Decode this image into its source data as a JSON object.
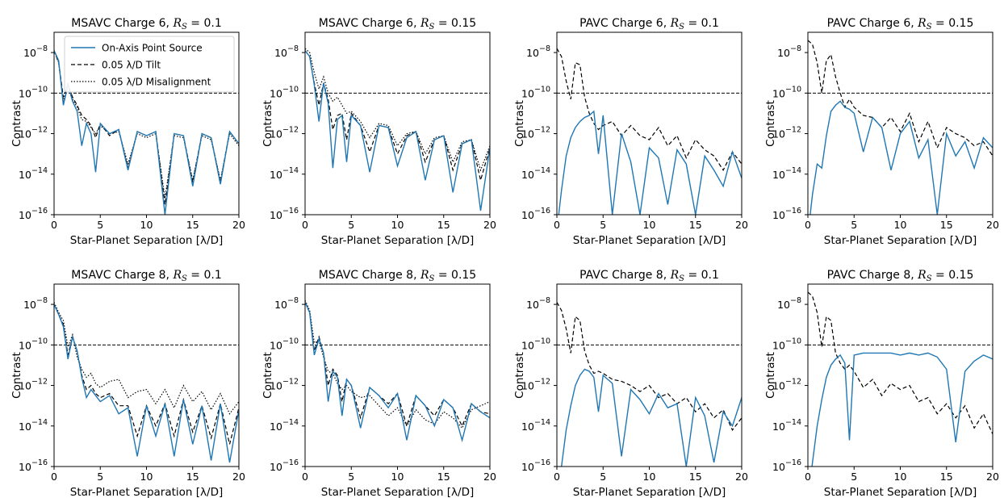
{
  "figure": {
    "xlabel": "Star-Planet Separation [λ/D]",
    "ylabel": "Contrast",
    "xticks": [
      "0",
      "5",
      "10",
      "15",
      "20"
    ],
    "yticks": [
      "10",
      "10",
      "10",
      "10",
      "10"
    ],
    "ytick_exponents": [
      "−8",
      "−10",
      "−12",
      "−14",
      "−16"
    ],
    "ytick_values": [
      -8,
      -10,
      -12,
      -14,
      -16
    ],
    "xlim": [
      0,
      20
    ],
    "ylim_log10": [
      -16,
      -7
    ]
  },
  "legend": {
    "items": [
      {
        "label": "On-Axis Point Source",
        "style": "solid",
        "color": "#1f77b4"
      },
      {
        "label": "0.05 λ/D Tilt",
        "style": "dashed",
        "color": "#000000"
      },
      {
        "label": "0.05 λ/D Misalignment",
        "style": "dotted",
        "color": "#000000"
      }
    ]
  },
  "reference_line": {
    "value_log10": -10,
    "style": "dashed",
    "color": "#000000"
  },
  "chart_data": [
    {
      "type": "line",
      "title_text": "MSAVC Charge 6, ",
      "title_math": "R",
      "title_sub": "S",
      "title_tail": " = 0.1",
      "has_legend": true,
      "x": [
        0,
        0.5,
        1,
        1.5,
        2,
        2.5,
        3,
        3.5,
        4,
        4.5,
        5,
        6,
        7,
        8,
        9,
        10,
        11,
        12,
        13,
        14,
        15,
        16,
        17,
        18,
        19,
        20
      ],
      "series": [
        {
          "name": "On-Axis Point Source",
          "log10": [
            -7.9,
            -8.4,
            -10.6,
            -9.6,
            -10.4,
            -10.9,
            -12.6,
            -11.5,
            -12.0,
            -13.9,
            -11.5,
            -12.0,
            -11.8,
            -13.8,
            -11.9,
            -12.1,
            -11.9,
            -16.0,
            -12.0,
            -12.1,
            -14.6,
            -12.0,
            -12.2,
            -14.5,
            -11.9,
            -12.5
          ]
        },
        {
          "name": "0.05 λ/D Tilt",
          "log10": [
            -7.9,
            -8.5,
            -10.2,
            -9.6,
            -10.2,
            -10.6,
            -11.1,
            -11.3,
            -11.6,
            -12.2,
            -11.5,
            -12.1,
            -11.8,
            -13.7,
            -11.9,
            -12.1,
            -11.9,
            -15.5,
            -12.0,
            -12.1,
            -14.4,
            -12.0,
            -12.2,
            -14.4,
            -11.9,
            -12.5
          ]
        },
        {
          "name": "0.05 λ/D Misalignment",
          "log10": [
            -7.9,
            -8.5,
            -10.4,
            -9.5,
            -10.3,
            -10.7,
            -11.3,
            -11.4,
            -11.7,
            -12.0,
            -11.6,
            -12.0,
            -11.9,
            -13.5,
            -12.0,
            -12.2,
            -12.0,
            -15.2,
            -12.1,
            -12.2,
            -14.3,
            -12.1,
            -12.3,
            -14.3,
            -12.0,
            -12.6
          ]
        }
      ]
    },
    {
      "type": "line",
      "title_text": "MSAVC Charge 6, ",
      "title_math": "R",
      "title_sub": "S",
      "title_tail": " = 0.15",
      "has_legend": false,
      "x": [
        0,
        0.5,
        1,
        1.5,
        2,
        2.5,
        3,
        3.5,
        4,
        4.5,
        5,
        6,
        7,
        8,
        9,
        10,
        11,
        12,
        13,
        14,
        15,
        16,
        17,
        18,
        19,
        20
      ],
      "series": [
        {
          "name": "On-Axis Point Source",
          "log10": [
            -7.9,
            -8.2,
            -9.6,
            -11.4,
            -9.5,
            -10.5,
            -13.7,
            -11.3,
            -11.1,
            -13.4,
            -11.1,
            -11.6,
            -13.9,
            -11.6,
            -11.7,
            -13.6,
            -12.2,
            -11.9,
            -14.3,
            -12.3,
            -12.1,
            -14.9,
            -12.5,
            -12.3,
            -15.8,
            -12.7
          ]
        },
        {
          "name": "0.05 λ/D Tilt",
          "log10": [
            -7.9,
            -8.2,
            -9.5,
            -10.6,
            -9.5,
            -10.3,
            -11.8,
            -11.1,
            -11.0,
            -12.3,
            -11.0,
            -11.6,
            -12.9,
            -11.6,
            -11.7,
            -13.0,
            -12.1,
            -11.9,
            -13.4,
            -12.3,
            -12.1,
            -13.8,
            -12.5,
            -12.3,
            -14.3,
            -12.7
          ]
        },
        {
          "name": "0.05 λ/D Misalignment",
          "log10": [
            -7.8,
            -8.0,
            -9.0,
            -9.8,
            -9.2,
            -10.0,
            -10.4,
            -10.2,
            -10.6,
            -11.0,
            -10.9,
            -11.4,
            -12.2,
            -11.5,
            -11.6,
            -12.6,
            -12.0,
            -11.9,
            -13.0,
            -12.2,
            -12.1,
            -13.4,
            -12.4,
            -12.3,
            -13.8,
            -12.6
          ]
        }
      ]
    },
    {
      "type": "line",
      "title_text": "PAVC Charge 6, ",
      "title_math": "R",
      "title_sub": "S",
      "title_tail": " = 0.1",
      "has_legend": false,
      "x": [
        0,
        0.5,
        1,
        1.5,
        2,
        2.5,
        3,
        3.5,
        4,
        4.5,
        5,
        6,
        7,
        8,
        9,
        10,
        11,
        12,
        13,
        14,
        15,
        16,
        17,
        18,
        19,
        20
      ],
      "series": [
        {
          "name": "On-Axis Point Source",
          "log10": [
            -16.8,
            -14.8,
            -13.1,
            -12.2,
            -11.7,
            -11.4,
            -11.2,
            -11.1,
            -10.9,
            -13.0,
            -11.1,
            -16.0,
            -12.0,
            -13.4,
            -16.0,
            -12.7,
            -13.2,
            -15.5,
            -12.8,
            -13.5,
            -16.0,
            -13.1,
            -13.8,
            -14.6,
            -12.9,
            -14.2
          ]
        },
        {
          "name": "0.05 λ/D Tilt",
          "log10": [
            -7.8,
            -8.2,
            -9.4,
            -10.3,
            -8.5,
            -8.6,
            -10.2,
            -11.0,
            -11.5,
            -11.8,
            -11.6,
            -11.4,
            -12.1,
            -11.6,
            -12.1,
            -12.3,
            -11.7,
            -12.6,
            -12.1,
            -13.2,
            -12.3,
            -12.8,
            -13.1,
            -13.8,
            -12.9,
            -13.5
          ]
        }
      ]
    },
    {
      "type": "line",
      "title_text": "PAVC Charge 6, ",
      "title_math": "R",
      "title_sub": "S",
      "title_tail": " = 0.15",
      "has_legend": false,
      "x": [
        0,
        0.5,
        1,
        1.5,
        2,
        2.5,
        3,
        3.5,
        4,
        4.5,
        5,
        6,
        7,
        8,
        9,
        10,
        11,
        12,
        13,
        14,
        15,
        16,
        17,
        18,
        19,
        20
      ],
      "series": [
        {
          "name": "On-Axis Point Source",
          "log10": [
            -17.0,
            -15.0,
            -13.5,
            -13.7,
            -12.1,
            -10.9,
            -10.6,
            -10.4,
            -10.7,
            -10.8,
            -11.0,
            -12.9,
            -11.2,
            -11.7,
            -13.8,
            -12.0,
            -11.4,
            -13.2,
            -12.3,
            -16.0,
            -12.0,
            -13.1,
            -12.4,
            -13.7,
            -12.2,
            -12.7
          ]
        },
        {
          "name": "0.05 λ/D Tilt",
          "log10": [
            -7.4,
            -7.6,
            -8.5,
            -10.0,
            -8.4,
            -8.1,
            -9.2,
            -10.0,
            -10.7,
            -10.3,
            -10.7,
            -11.1,
            -11.2,
            -11.7,
            -11.2,
            -11.9,
            -11.0,
            -12.4,
            -11.4,
            -12.7,
            -11.7,
            -12.0,
            -12.2,
            -12.6,
            -12.4,
            -13.1
          ]
        }
      ]
    },
    {
      "type": "line",
      "title_text": "MSAVC Charge 8, ",
      "title_math": "R",
      "title_sub": "S",
      "title_tail": " = 0.1",
      "has_legend": false,
      "x": [
        0,
        0.5,
        1,
        1.5,
        2,
        2.5,
        3,
        3.5,
        4,
        4.5,
        5,
        6,
        7,
        8,
        9,
        10,
        11,
        12,
        13,
        14,
        15,
        16,
        17,
        18,
        19,
        20
      ],
      "series": [
        {
          "name": "On-Axis Point Source",
          "log10": [
            -8.0,
            -8.5,
            -9.1,
            -10.7,
            -9.6,
            -10.3,
            -11.6,
            -12.6,
            -12.2,
            -12.5,
            -12.8,
            -12.5,
            -13.4,
            -13.1,
            -15.5,
            -13.0,
            -14.5,
            -12.9,
            -15.5,
            -12.7,
            -14.9,
            -13.0,
            -15.7,
            -12.9,
            -15.8,
            -13.2
          ]
        },
        {
          "name": "0.05 λ/D Tilt",
          "log10": [
            -8.0,
            -8.5,
            -9.0,
            -10.5,
            -9.6,
            -10.3,
            -11.5,
            -12.2,
            -12.0,
            -12.4,
            -12.6,
            -12.4,
            -13.0,
            -13.0,
            -14.5,
            -13.0,
            -14.0,
            -12.9,
            -14.5,
            -12.7,
            -14.3,
            -13.0,
            -14.6,
            -12.9,
            -14.9,
            -13.1
          ]
        },
        {
          "name": "0.05 λ/D Misalignment",
          "log10": [
            -7.9,
            -8.4,
            -8.8,
            -10.1,
            -9.5,
            -10.6,
            -11.2,
            -11.6,
            -11.4,
            -11.9,
            -12.1,
            -11.8,
            -11.7,
            -12.6,
            -12.3,
            -12.2,
            -12.9,
            -12.2,
            -13.1,
            -12.0,
            -12.8,
            -12.3,
            -13.2,
            -12.4,
            -13.4,
            -12.8
          ]
        }
      ]
    },
    {
      "type": "line",
      "title_text": "MSAVC Charge 8, ",
      "title_math": "R",
      "title_sub": "S",
      "title_tail": " = 0.15",
      "has_legend": false,
      "x": [
        0,
        0.5,
        1,
        1.5,
        2,
        2.5,
        3,
        3.5,
        4,
        4.5,
        5,
        6,
        7,
        8,
        9,
        10,
        11,
        12,
        13,
        14,
        15,
        16,
        17,
        18,
        19,
        20
      ],
      "series": [
        {
          "name": "On-Axis Point Source",
          "log10": [
            -7.9,
            -8.4,
            -10.5,
            -9.7,
            -10.4,
            -12.8,
            -11.3,
            -11.6,
            -13.5,
            -11.7,
            -12.0,
            -14.1,
            -12.1,
            -12.5,
            -13.1,
            -12.4,
            -14.7,
            -12.5,
            -13.0,
            -14.0,
            -12.7,
            -13.1,
            -14.7,
            -12.9,
            -13.3,
            -13.6
          ]
        },
        {
          "name": "0.05 λ/D Tilt",
          "log10": [
            -7.9,
            -8.4,
            -10.3,
            -9.6,
            -10.4,
            -12.0,
            -11.2,
            -11.5,
            -12.8,
            -11.7,
            -12.0,
            -13.6,
            -12.1,
            -12.5,
            -12.9,
            -12.4,
            -14.0,
            -12.5,
            -13.0,
            -13.5,
            -12.7,
            -13.1,
            -14.0,
            -12.9,
            -13.3,
            -13.4
          ]
        },
        {
          "name": "0.05 λ/D Misalignment",
          "log10": [
            -7.8,
            -8.3,
            -9.9,
            -9.8,
            -10.6,
            -11.3,
            -11.4,
            -11.9,
            -12.2,
            -12.0,
            -12.3,
            -12.6,
            -12.5,
            -13.0,
            -13.5,
            -13.1,
            -14.0,
            -13.2,
            -13.7,
            -13.9,
            -13.3,
            -13.6,
            -14.1,
            -13.2,
            -13.0,
            -12.8
          ]
        }
      ]
    },
    {
      "type": "line",
      "title_text": "PAVC Charge 8, ",
      "title_math": "R",
      "title_sub": "S",
      "title_tail": " = 0.1",
      "has_legend": false,
      "x": [
        0,
        0.5,
        1,
        1.5,
        2,
        2.5,
        3,
        3.5,
        4,
        4.5,
        5,
        6,
        7,
        8,
        9,
        10,
        11,
        12,
        13,
        14,
        15,
        16,
        17,
        18,
        19,
        20
      ],
      "series": [
        {
          "name": "On-Axis Point Source",
          "log10": [
            -17.5,
            -16.0,
            -14.2,
            -13.0,
            -12.0,
            -11.5,
            -11.2,
            -11.3,
            -11.6,
            -13.3,
            -11.5,
            -11.9,
            -15.5,
            -12.2,
            -12.7,
            -13.4,
            -12.4,
            -13.1,
            -12.9,
            -16.0,
            -12.6,
            -13.5,
            -15.8,
            -13.3,
            -14.0,
            -12.6
          ]
        },
        {
          "name": "0.05 λ/D Tilt",
          "log10": [
            -7.9,
            -8.3,
            -9.2,
            -10.4,
            -8.6,
            -8.8,
            -10.3,
            -11.0,
            -11.4,
            -11.3,
            -11.4,
            -11.7,
            -11.8,
            -12.0,
            -12.3,
            -12.0,
            -12.6,
            -12.4,
            -12.9,
            -12.6,
            -13.3,
            -12.9,
            -13.6,
            -13.2,
            -14.2,
            -13.6
          ]
        }
      ]
    },
    {
      "type": "line",
      "title_text": "PAVC Charge 8, ",
      "title_math": "R",
      "title_sub": "S",
      "title_tail": " = 0.15",
      "has_legend": false,
      "x": [
        0,
        0.5,
        1,
        1.5,
        2,
        2.5,
        3,
        3.5,
        4,
        4.5,
        5,
        6,
        7,
        8,
        9,
        10,
        11,
        12,
        13,
        14,
        15,
        16,
        17,
        18,
        19,
        20
      ],
      "series": [
        {
          "name": "On-Axis Point Source",
          "log10": [
            -17.5,
            -15.8,
            -14.0,
            -12.7,
            -11.6,
            -11.0,
            -10.7,
            -10.5,
            -10.9,
            -14.7,
            -10.5,
            -10.4,
            -10.4,
            -10.4,
            -10.4,
            -10.5,
            -10.4,
            -10.5,
            -10.4,
            -10.6,
            -11.2,
            -14.8,
            -11.3,
            -10.8,
            -10.5,
            -10.7
          ]
        },
        {
          "name": "0.05 λ/D Tilt",
          "log10": [
            -7.4,
            -7.6,
            -8.4,
            -10.1,
            -8.6,
            -8.8,
            -10.4,
            -10.9,
            -11.2,
            -11.0,
            -11.3,
            -12.1,
            -11.7,
            -12.5,
            -11.9,
            -12.2,
            -12.0,
            -12.8,
            -12.6,
            -13.4,
            -12.9,
            -13.6,
            -13.0,
            -14.1,
            -13.4,
            -14.4
          ]
        }
      ]
    }
  ]
}
